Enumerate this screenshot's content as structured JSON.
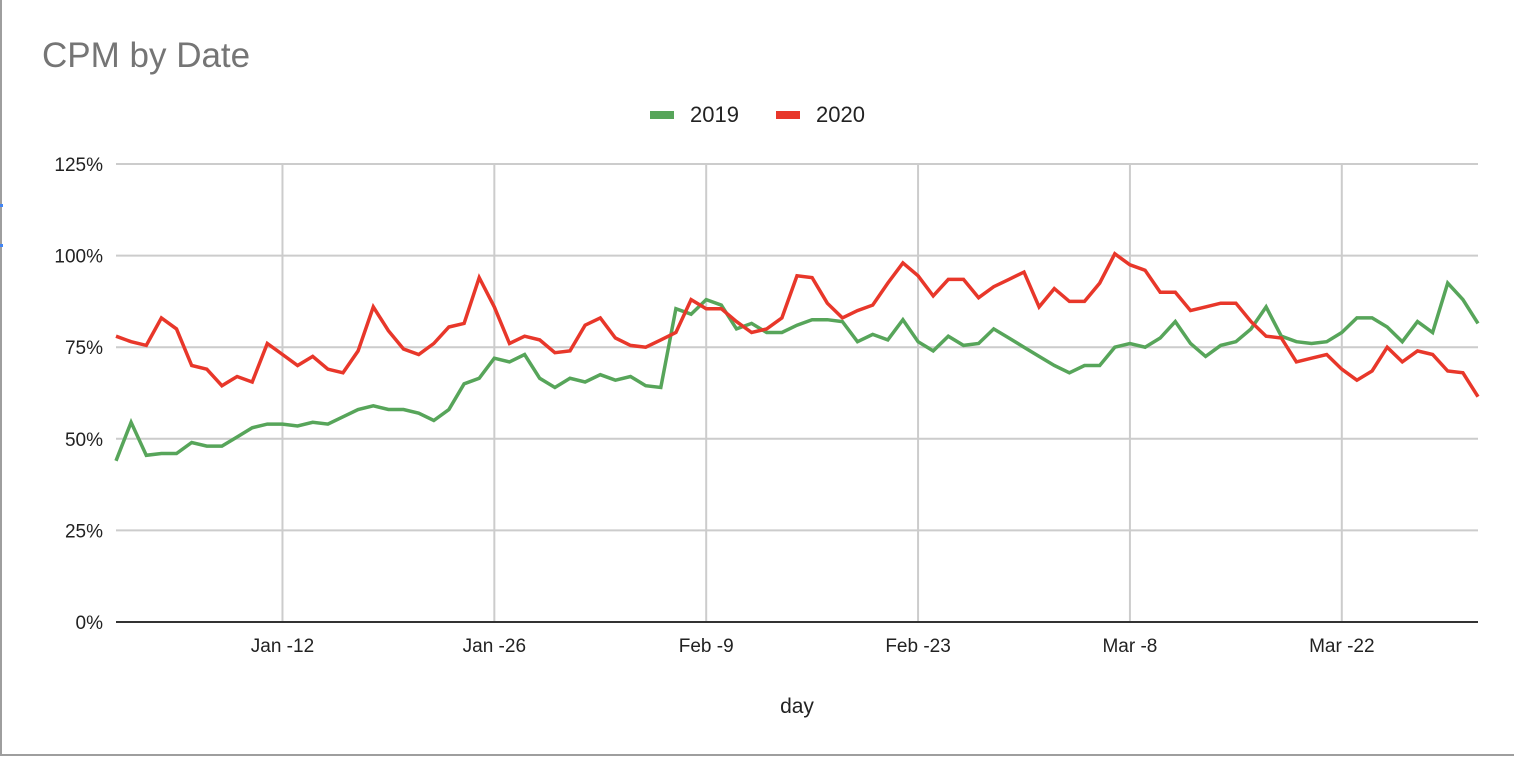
{
  "chart_data": {
    "type": "line",
    "title": "CPM by Date",
    "xlabel": "day",
    "ylabel": "",
    "ylim": [
      0,
      125
    ],
    "yticks": [
      "0%",
      "25%",
      "50%",
      "75%",
      "100%",
      "125%"
    ],
    "ytick_values": [
      0,
      25,
      50,
      75,
      100,
      125
    ],
    "xticks": [
      "Jan -12",
      "Jan -26",
      "Feb -9",
      "Feb -23",
      "Mar -8",
      "Mar -22"
    ],
    "xtick_day_index": [
      11,
      25,
      39,
      53,
      67,
      81
    ],
    "x_range": "Jan 1 – Mar 31 (91 days)",
    "grid": true,
    "legend_position": "top",
    "series": [
      {
        "name": "2019",
        "color": "#57a55a",
        "values": [
          44,
          54.5,
          45.5,
          46,
          46,
          49,
          48,
          48,
          50.5,
          53,
          54,
          54,
          53.5,
          54.5,
          54,
          56,
          58,
          59,
          58,
          58,
          57,
          55,
          58,
          65,
          66.5,
          72,
          71,
          73,
          66.5,
          64,
          66.5,
          65.5,
          67.5,
          66,
          67,
          64.5,
          64,
          85.5,
          84,
          88,
          86.5,
          80,
          81.5,
          79,
          79,
          81,
          82.5,
          82.5,
          82,
          76.5,
          78.5,
          77,
          82.5,
          76.5,
          74,
          78,
          75.5,
          76,
          80,
          77.5,
          75,
          72.5,
          70,
          68,
          70,
          70,
          75,
          76,
          75,
          77.5,
          82,
          76,
          72.5,
          75.5,
          76.5,
          80,
          86,
          78,
          76.5,
          76,
          76.5,
          79,
          83,
          83,
          80.5,
          76.5,
          82,
          79,
          92.5,
          88,
          81.5
        ]
      },
      {
        "name": "2020",
        "color": "#e8372a",
        "values": [
          78,
          76.5,
          75.5,
          83,
          80,
          70,
          69,
          64.5,
          67,
          65.5,
          76,
          73,
          70,
          72.5,
          69,
          68,
          74,
          86,
          79.5,
          74.5,
          73,
          76,
          80.5,
          81.5,
          94,
          86,
          76,
          78,
          77,
          73.5,
          74,
          81,
          83,
          77.5,
          75.5,
          75,
          77,
          79,
          88,
          85.5,
          85.5,
          82,
          79,
          80,
          83,
          94.5,
          94,
          87,
          83,
          85,
          86.5,
          92.5,
          98,
          94.5,
          89,
          93.5,
          93.5,
          88.5,
          91.5,
          93.5,
          95.5,
          86,
          91,
          87.5,
          87.5,
          92.5,
          100.5,
          97.5,
          96,
          90,
          90,
          85,
          86,
          87,
          87,
          82,
          78,
          77.5,
          71,
          72,
          73,
          69,
          66,
          68.5,
          75,
          71,
          74,
          73,
          68.5,
          68,
          61.5
        ]
      }
    ]
  },
  "legend": {
    "items": [
      {
        "label": "2019",
        "color": "#57a55a"
      },
      {
        "label": "2020",
        "color": "#e8372a"
      }
    ]
  }
}
